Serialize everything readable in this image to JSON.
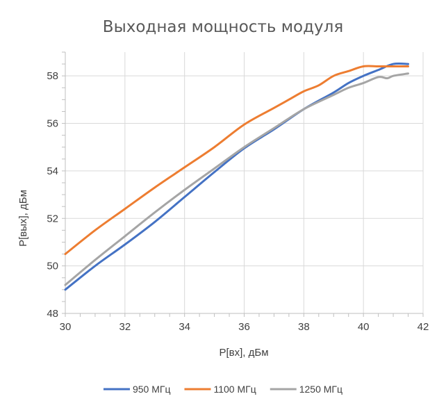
{
  "chart_data": {
    "type": "line",
    "title": "Выходная мощность модуля",
    "xlabel": "P[вх], дБм",
    "ylabel": "P[вых], дБм",
    "xlim": [
      30,
      42
    ],
    "ylim": [
      48,
      59
    ],
    "x_ticks": [
      30,
      32,
      34,
      36,
      38,
      40,
      42
    ],
    "y_ticks": [
      48,
      50,
      52,
      54,
      56,
      58
    ],
    "x_minor_step": 0.5,
    "y_minor_step": 0.5,
    "grid": true,
    "legend_position": "bottom",
    "series": [
      {
        "name": "950 МГц",
        "color": "#4472c4",
        "x": [
          30,
          31,
          32,
          33,
          34,
          35,
          36,
          37,
          38,
          39,
          39.5,
          40,
          40.5,
          41,
          41.5
        ],
        "y": [
          49.0,
          50.0,
          50.9,
          51.85,
          52.9,
          53.95,
          54.95,
          55.75,
          56.6,
          57.3,
          57.7,
          58.0,
          58.25,
          58.5,
          58.5
        ]
      },
      {
        "name": "1100 МГц",
        "color": "#ed7d31",
        "x": [
          30,
          31,
          32,
          33,
          34,
          35,
          36,
          37,
          37.5,
          38,
          38.5,
          39,
          39.5,
          40,
          40.5,
          41,
          41.5
        ],
        "y": [
          50.5,
          51.5,
          52.4,
          53.3,
          54.15,
          55.0,
          55.95,
          56.65,
          57.0,
          57.35,
          57.6,
          58.0,
          58.2,
          58.4,
          58.4,
          58.4,
          58.4
        ]
      },
      {
        "name": "1250 МГц",
        "color": "#a5a5a5",
        "x": [
          30,
          31,
          32,
          33,
          34,
          35,
          36,
          37,
          38,
          39,
          39.5,
          40,
          40.5,
          40.8,
          41,
          41.5
        ],
        "y": [
          49.2,
          50.25,
          51.25,
          52.25,
          53.2,
          54.1,
          55.0,
          55.8,
          56.6,
          57.2,
          57.5,
          57.7,
          57.95,
          57.9,
          58.0,
          58.1
        ]
      }
    ]
  }
}
